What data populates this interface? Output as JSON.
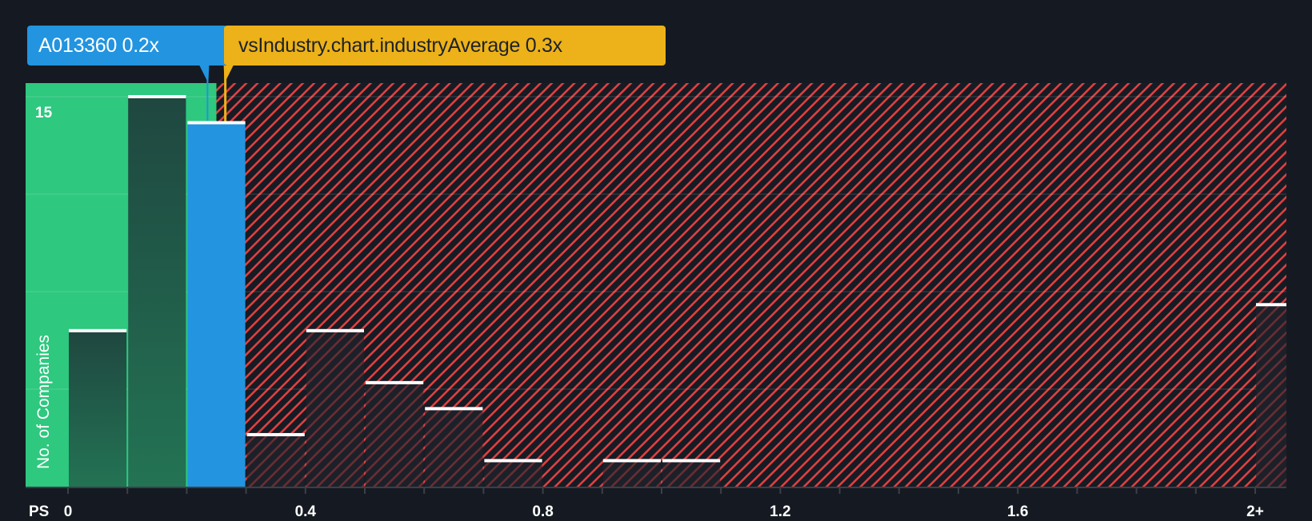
{
  "labels": {
    "company": "A013360 0.2x",
    "industry": "vsIndustry.chart.industryAverage 0.3x"
  },
  "axis": {
    "x_prefix": "PS",
    "y_title": "No. of Companies",
    "y_tick_label": "15"
  },
  "colors": {
    "background": "#151a22",
    "good_zone": "#2ec87f",
    "company": "#2394df",
    "industry": "#edb219",
    "hatch_red": "#e0403f",
    "bar_in_good": "#214c41",
    "bar_top": "#ffffff"
  },
  "chart_data": {
    "type": "bar",
    "title": "Price-to-Sales (PS) distribution vs industry",
    "xlabel": "PS",
    "ylabel": "No. of Companies",
    "categories": [
      "0-0.1",
      "0.1-0.2",
      "0.2-0.3",
      "0.3-0.4",
      "0.4-0.5",
      "0.5-0.6",
      "0.6-0.7",
      "0.7-0.8",
      "0.8-0.9",
      "0.9-1.0",
      "1.0-1.1",
      "2+"
    ],
    "bin_starts": [
      0,
      0.1,
      0.2,
      0.3,
      0.4,
      0.5,
      0.6,
      0.7,
      0.8,
      0.9,
      1.0,
      2.0
    ],
    "values": [
      6,
      15,
      14,
      2,
      6,
      4,
      3,
      1,
      0,
      1,
      1,
      7
    ],
    "highlight_bin": 2,
    "x_ticks": [
      "0",
      "0.4",
      "0.8",
      "1.2",
      "1.6",
      "2+"
    ],
    "x_tick_values": [
      0,
      0.4,
      0.8,
      1.2,
      1.6,
      2.0
    ],
    "y_ticks": [
      15
    ],
    "ylim": [
      0,
      15.5
    ],
    "company_value": 0.2,
    "company_marker": 0.235,
    "industry_average": 0.3,
    "industry_marker": 0.265,
    "good_zone_end": 0.25,
    "grid": true,
    "legend": "none"
  }
}
